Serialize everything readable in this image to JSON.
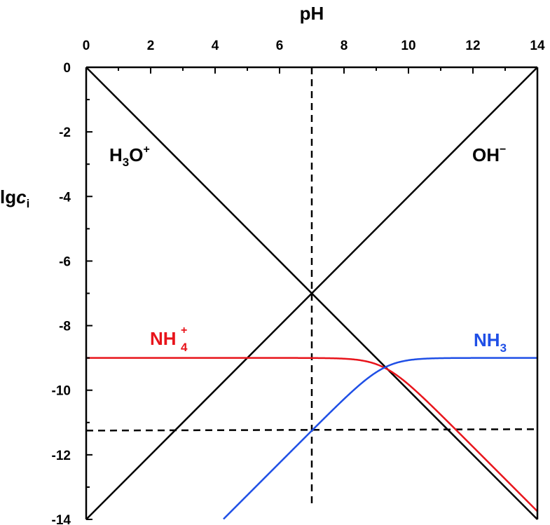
{
  "chart_data": {
    "type": "line",
    "title": "",
    "xlabel": "pH",
    "ylabel_main": "lg",
    "ylabel_var": "c",
    "ylabel_sub": "i",
    "xlim": [
      0,
      14
    ],
    "ylim": [
      -14,
      0
    ],
    "x_axis_position": "top",
    "x_ticks": [
      0,
      2,
      4,
      6,
      8,
      10,
      12,
      14
    ],
    "y_ticks": [
      0,
      -2,
      -4,
      -6,
      -8,
      -10,
      -12,
      -14
    ],
    "x_tick_labels": [
      "0",
      "2",
      "4",
      "6",
      "8",
      "10",
      "12",
      "14"
    ],
    "y_tick_labels": [
      "0",
      "-2",
      "-4",
      "-6",
      "-8",
      "-10",
      "-12",
      "-14"
    ],
    "grid": false,
    "colors": {
      "h3o": "#000000",
      "oh": "#000000",
      "nh4": "#e8141b",
      "nh3": "#1f4fe6",
      "dashed": "#000000"
    },
    "series": [
      {
        "key": "h3o",
        "base": "H",
        "sub": "3",
        "base2": "O",
        "sup": "+",
        "x": [
          0,
          14
        ],
        "y": [
          0,
          -14
        ]
      },
      {
        "key": "oh",
        "base": "OH",
        "sup": "−",
        "x": [
          0,
          14
        ],
        "y": [
          -14,
          0
        ]
      },
      {
        "key": "nh4",
        "base": "NH",
        "sup": "+",
        "sub": "4",
        "total_lg": -9,
        "pKa": 9.25
      },
      {
        "key": "nh3",
        "base": "NH",
        "sub": "3",
        "total_lg": -9,
        "pKa": 9.25
      }
    ],
    "reference_lines": [
      {
        "orientation": "vertical",
        "x": 7,
        "style": "dashed"
      },
      {
        "orientation": "horizontal",
        "y": -11.25,
        "style": "dashed"
      }
    ]
  }
}
